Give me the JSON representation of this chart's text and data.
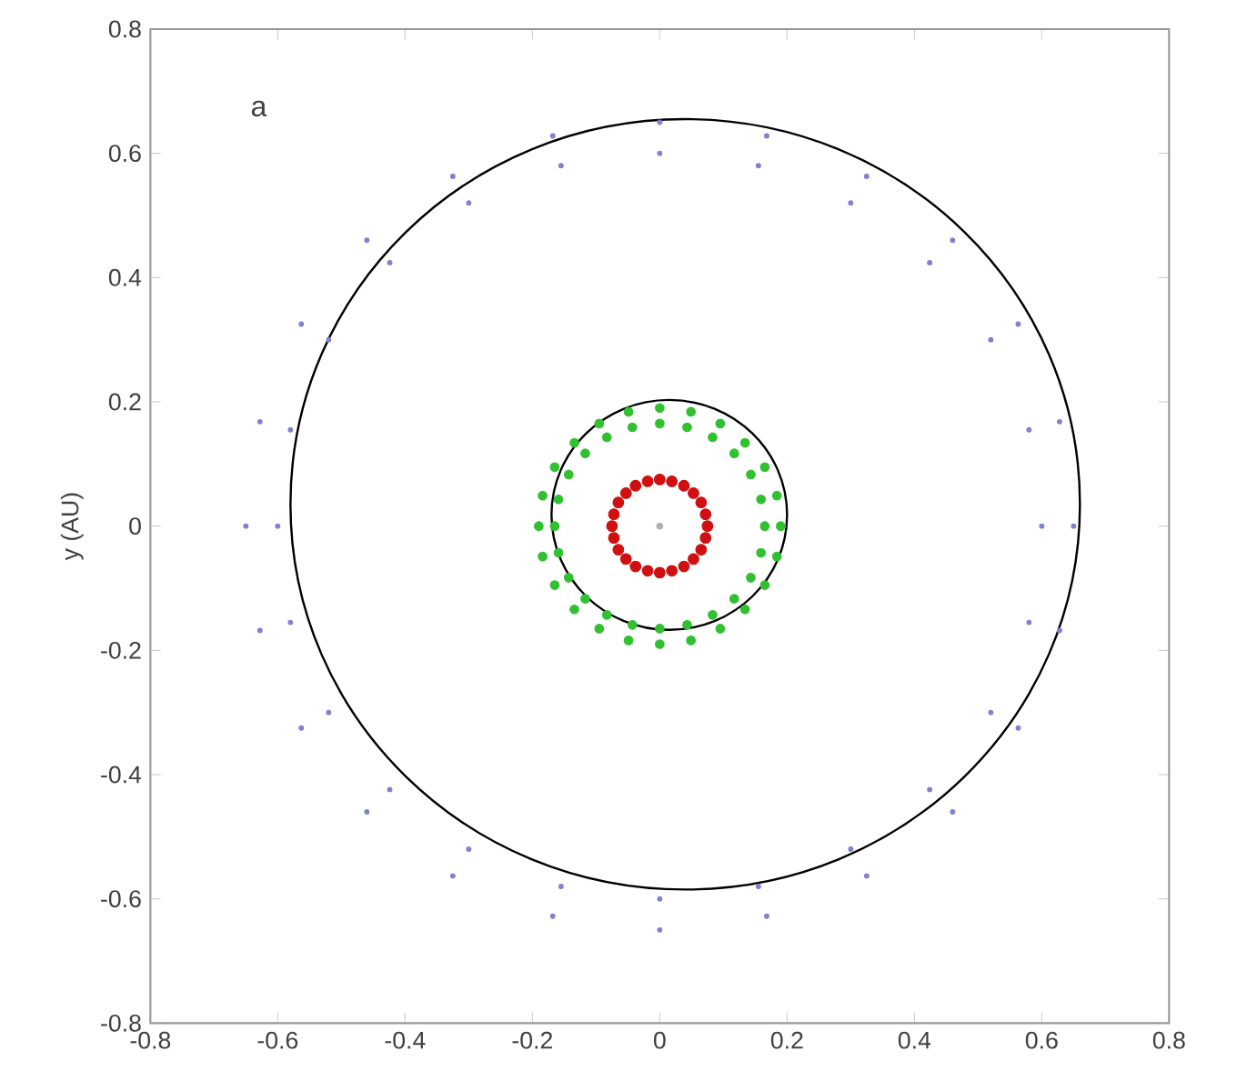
{
  "chart_data": {
    "type": "scatter",
    "ylabel": "y (AU)",
    "annotations": [
      "a"
    ],
    "xlim": [
      -0.8,
      0.8
    ],
    "ylim": [
      -0.8,
      0.8
    ],
    "xticks": [
      -0.8,
      -0.6,
      -0.4,
      -0.2,
      0,
      0.2,
      0.4,
      0.6,
      0.8
    ],
    "yticks": [
      -0.8,
      -0.6,
      -0.4,
      -0.2,
      0,
      0.2,
      0.4,
      0.6,
      0.8
    ],
    "grid": false,
    "series": [
      {
        "type": "scatter",
        "marker": "circle",
        "color": "#8080d0",
        "x": [
          0.6,
          0.58,
          0.52,
          0.424,
          0.3,
          0.155,
          0,
          -0.155,
          -0.3,
          -0.424,
          -0.52,
          -0.58,
          -0.6,
          -0.58,
          -0.52,
          -0.424,
          -0.3,
          -0.155,
          0,
          0.155,
          0.3,
          0.424,
          0.52,
          0.58,
          0.65,
          0.628,
          0.563,
          0.46,
          0.325,
          0.168,
          0,
          -0.168,
          -0.325,
          -0.46,
          -0.563,
          -0.628,
          -0.65,
          -0.628,
          -0.563,
          -0.46,
          -0.325,
          -0.168,
          0,
          0.168,
          0.325,
          0.46,
          0.563,
          0.628
        ],
        "values": [
          0,
          0.155,
          0.3,
          0.424,
          0.52,
          0.58,
          0.6,
          0.58,
          0.52,
          0.424,
          0.3,
          0.155,
          0,
          -0.155,
          -0.3,
          -0.424,
          -0.52,
          -0.58,
          -0.6,
          -0.58,
          -0.52,
          -0.424,
          -0.3,
          -0.155,
          0,
          0.168,
          0.325,
          0.46,
          0.563,
          0.628,
          0.65,
          0.628,
          0.563,
          0.46,
          0.325,
          0.168,
          0,
          -0.168,
          -0.325,
          -0.46,
          -0.563,
          -0.628,
          -0.65,
          -0.628,
          -0.563,
          -0.46,
          -0.325,
          -0.168
        ]
      },
      {
        "type": "scatter",
        "marker": "circle",
        "color": "#30c030",
        "x": [
          0.165,
          0.159,
          0.143,
          0.117,
          0.083,
          0.043,
          0,
          -0.043,
          -0.083,
          -0.117,
          -0.143,
          -0.159,
          -0.165,
          -0.159,
          -0.143,
          -0.117,
          -0.083,
          -0.043,
          0,
          0.043,
          0.083,
          0.117,
          0.143,
          0.159,
          0.19,
          0.184,
          0.165,
          0.134,
          0.095,
          0.049,
          0,
          -0.049,
          -0.095,
          -0.134,
          -0.165,
          -0.184,
          -0.19,
          -0.184,
          -0.165,
          -0.134,
          -0.095,
          -0.049,
          0,
          0.049,
          0.095,
          0.134,
          0.165,
          0.184
        ],
        "values": [
          0,
          0.043,
          0.083,
          0.117,
          0.143,
          0.159,
          0.165,
          0.159,
          0.143,
          0.117,
          0.083,
          0.043,
          0,
          -0.043,
          -0.083,
          -0.117,
          -0.143,
          -0.159,
          -0.165,
          -0.159,
          -0.143,
          -0.117,
          -0.083,
          -0.043,
          0,
          0.049,
          0.095,
          0.134,
          0.165,
          0.184,
          0.19,
          0.184,
          0.165,
          0.134,
          0.095,
          0.049,
          0,
          -0.049,
          -0.095,
          -0.134,
          -0.165,
          -0.184,
          -0.19,
          -0.184,
          -0.165,
          -0.134,
          -0.095,
          -0.049
        ]
      },
      {
        "type": "scatter",
        "marker": "circle",
        "color": "#d01010",
        "x": [
          0.075,
          0.072,
          0.065,
          0.053,
          0.038,
          0.019,
          0,
          -0.019,
          -0.038,
          -0.053,
          -0.065,
          -0.072,
          -0.075,
          -0.072,
          -0.065,
          -0.053,
          -0.038,
          -0.019,
          0,
          0.019,
          0.038,
          0.053,
          0.065,
          0.072
        ],
        "values": [
          0,
          0.019,
          0.038,
          0.053,
          0.065,
          0.072,
          0.075,
          0.072,
          0.065,
          0.053,
          0.038,
          0.019,
          0,
          -0.019,
          -0.038,
          -0.053,
          -0.065,
          -0.072,
          -0.075,
          -0.072,
          -0.065,
          -0.053,
          -0.038,
          -0.019
        ]
      },
      {
        "type": "scatter",
        "marker": "circle",
        "color": "#b0b0b0",
        "x": [
          0
        ],
        "values": [
          0
        ]
      }
    ]
  }
}
